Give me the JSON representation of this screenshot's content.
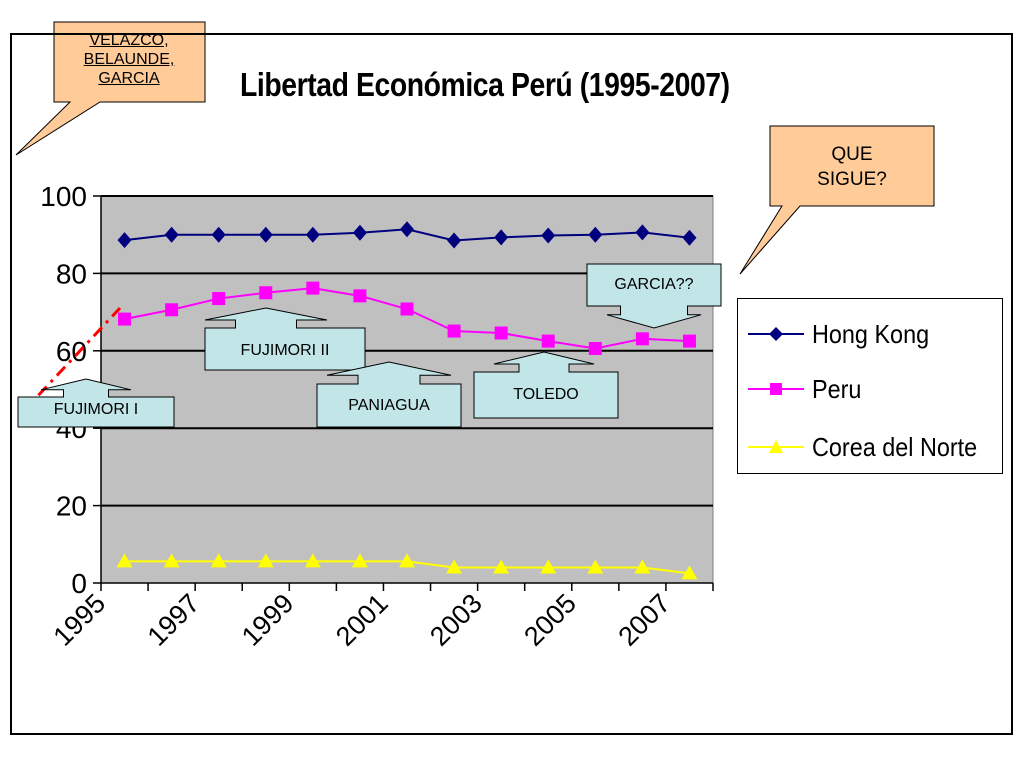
{
  "title": "Libertad Económica Perú (1995-2007)",
  "callouts": {
    "top_left": "VELAZCO,\nBELAUNDE,\nGARCIA",
    "top_right": "QUE\nSIGUE?"
  },
  "annotations": {
    "fujimori_1": "FUJIMORI I",
    "fujimori_2": "FUJIMORI II",
    "paniagua": "PANIAGUA",
    "toledo": "TOLEDO",
    "garcia": "GARCIA??"
  },
  "colors": {
    "hong_kong": "#00007f",
    "peru": "#ff00ff",
    "corea": "#ffff00",
    "plot_bg": "#c0c0c0",
    "callout_fill": "#ffcc99",
    "label_fill": "#c2e6e8",
    "dashed": "#ff0000"
  },
  "chart_data": {
    "type": "line",
    "title": "Libertad Económica Perú (1995-2007)",
    "x": [
      1995,
      1996,
      1997,
      1998,
      1999,
      2000,
      2001,
      2002,
      2003,
      2004,
      2005,
      2006,
      2007
    ],
    "x_tick_labels": [
      "1995",
      "1997",
      "1999",
      "2001",
      "2003",
      "2005",
      "2007"
    ],
    "y_ticks": [
      0,
      20,
      40,
      60,
      80,
      100
    ],
    "ylim": [
      0,
      100
    ],
    "grid": true,
    "legend_position": "right",
    "series": [
      {
        "name": "Hong Kong",
        "marker": "diamond",
        "values": [
          88.6,
          90,
          90,
          90,
          90,
          90.5,
          91.4,
          88.5,
          89.3,
          89.8,
          90,
          90.6,
          89.2
        ]
      },
      {
        "name": "Peru",
        "marker": "square",
        "values": [
          68.2,
          70.6,
          73.5,
          75,
          76.2,
          74.2,
          70.8,
          65.1,
          64.6,
          62.5,
          60.6,
          63.1,
          62.5
        ]
      },
      {
        "name": "Corea del Norte",
        "marker": "triangle",
        "values": [
          5.6,
          5.6,
          5.6,
          5.6,
          5.6,
          5.6,
          5.6,
          4,
          4,
          4,
          4,
          4,
          2.5
        ]
      }
    ]
  }
}
